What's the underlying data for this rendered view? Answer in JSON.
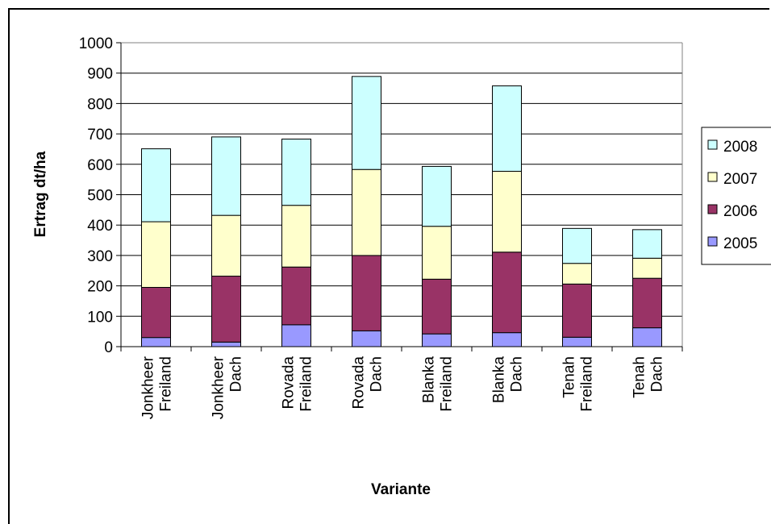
{
  "chart_data": {
    "type": "bar",
    "stacked": true,
    "categories": [
      [
        "Jonkheer",
        "Freiland"
      ],
      [
        "Jonkheer",
        "Dach"
      ],
      [
        "Rovada",
        "Freiland"
      ],
      [
        "Rovada",
        "Dach"
      ],
      [
        "Blanka",
        "Freiland"
      ],
      [
        "Blanka",
        "Dach"
      ],
      [
        "Tenah",
        "Freiland"
      ],
      [
        "Tenah",
        "Dach"
      ]
    ],
    "series": [
      {
        "name": "2005",
        "color": "#9999ff",
        "values": [
          30,
          15,
          72,
          52,
          42,
          46,
          31,
          62
        ]
      },
      {
        "name": "2006",
        "color": "#993366",
        "values": [
          165,
          217,
          190,
          248,
          180,
          265,
          175,
          163
        ]
      },
      {
        "name": "2007",
        "color": "#ffffcc",
        "values": [
          216,
          200,
          203,
          283,
          174,
          266,
          68,
          66
        ]
      },
      {
        "name": "2008",
        "color": "#ccffff",
        "values": [
          240,
          258,
          218,
          306,
          197,
          281,
          115,
          94
        ]
      }
    ],
    "xlabel": "Variante",
    "ylabel": "Ertrag dt/ha",
    "ylim": [
      0,
      1000
    ],
    "yticks": [
      0,
      100,
      200,
      300,
      400,
      500,
      600,
      700,
      800,
      900,
      1000
    ],
    "grid": true,
    "legend_position": "right",
    "legend_order": [
      "2008",
      "2007",
      "2006",
      "2005"
    ]
  }
}
